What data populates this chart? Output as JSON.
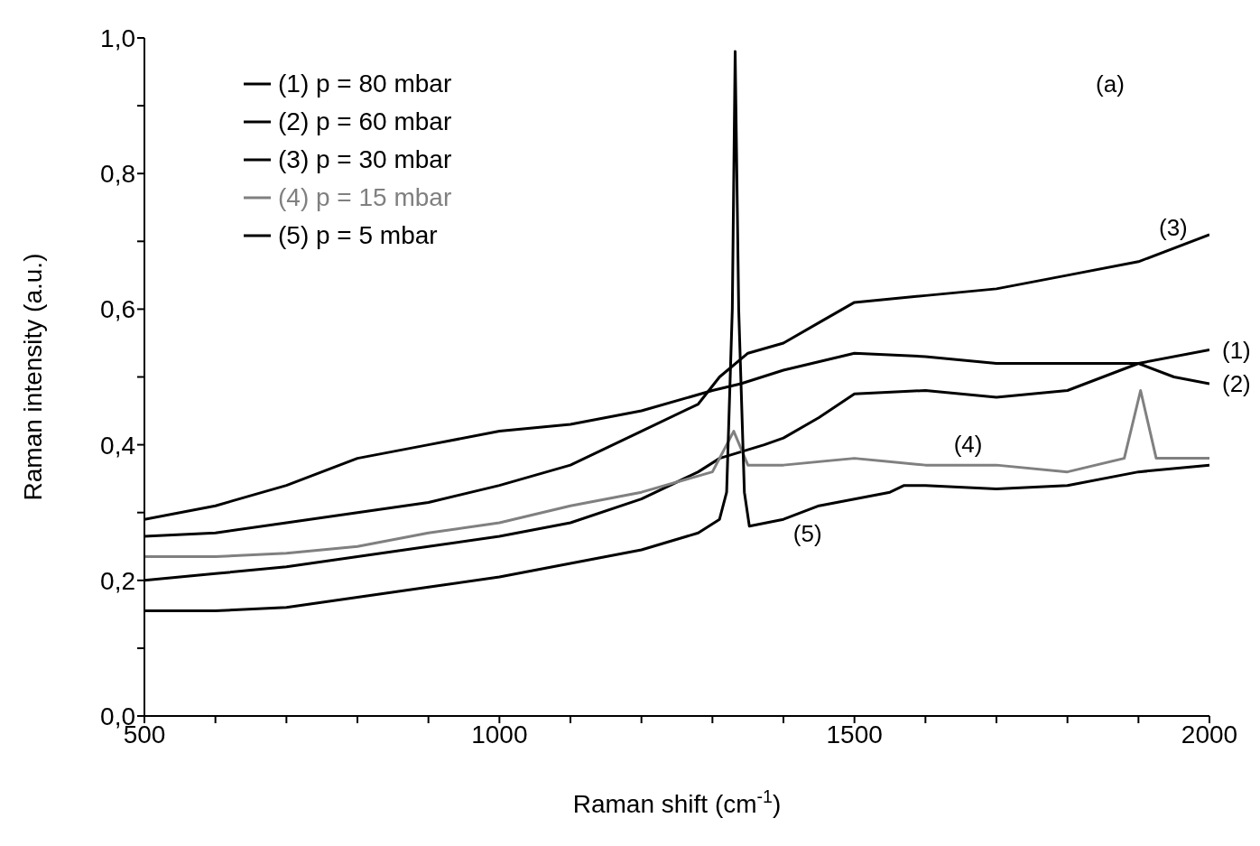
{
  "chart_data": {
    "type": "line",
    "xlabel": "Raman shift (cm$^{-1}$)",
    "ylabel": "Raman intensity (a.u.)",
    "xlim": [
      500,
      2000
    ],
    "xticks": [
      500,
      {
        "value": 600,
        "label": null
      },
      {
        "value": 700,
        "label": null
      },
      {
        "value": 800,
        "label": null
      },
      {
        "value": 900,
        "label": null
      },
      1000,
      {
        "value": 1100,
        "label": null
      },
      {
        "value": 1200,
        "label": null
      },
      {
        "value": 1300,
        "label": null
      },
      {
        "value": 1400,
        "label": null
      },
      1500,
      {
        "value": 1600,
        "label": null
      },
      {
        "value": 1700,
        "label": null
      },
      {
        "value": 1800,
        "label": null
      },
      {
        "value": 1900,
        "label": null
      },
      2000
    ],
    "ylim": [
      0,
      1
    ],
    "yticks": [
      {
        "value": 0,
        "label": "0,0"
      },
      {
        "value": 0.1,
        "label": null
      },
      {
        "value": 0.2,
        "label": "0,2"
      },
      {
        "value": 0.3,
        "label": null
      },
      {
        "value": 0.4,
        "label": "0,4"
      },
      {
        "value": 0.5,
        "label": null
      },
      {
        "value": 0.6,
        "label": "0,6"
      },
      {
        "value": 0.7,
        "label": null
      },
      {
        "value": 0.8,
        "label": "0,8"
      },
      {
        "value": 0.9,
        "label": null
      },
      {
        "value": 1,
        "label": "1,0"
      }
    ],
    "legend": "top left",
    "marker": "none",
    "line_style": "solid",
    "series": [
      {
        "name": "(1) p = 80 mbar",
        "color": "#000000",
        "x": [
          500,
          600,
          700,
          800,
          900,
          1000,
          1100,
          1200,
          1300,
          1340,
          1400,
          1500,
          1600,
          1700,
          1800,
          1900,
          2000
        ],
        "values": [
          0.29,
          0.31,
          0.34,
          0.38,
          0.4,
          0.42,
          0.43,
          0.45,
          0.48,
          0.49,
          0.51,
          0.535,
          0.53,
          0.52,
          0.52,
          0.52,
          0.54
        ]
      },
      {
        "name": "(2) p = 60 mbar",
        "color": "#000000",
        "x": [
          500,
          600,
          700,
          800,
          900,
          1000,
          1100,
          1200,
          1280,
          1310,
          1373,
          1400,
          1450,
          1500,
          1600,
          1700,
          1800,
          1850,
          1900,
          1950,
          2000
        ],
        "values": [
          0.2,
          0.21,
          0.22,
          0.235,
          0.25,
          0.265,
          0.285,
          0.32,
          0.36,
          0.38,
          0.4,
          0.41,
          0.44,
          0.475,
          0.48,
          0.47,
          0.48,
          0.5,
          0.52,
          0.5,
          0.49
        ]
      },
      {
        "name": "(3) p = 30 mbar",
        "color": "#000000",
        "x": [
          500,
          600,
          700,
          800,
          900,
          1000,
          1100,
          1200,
          1280,
          1310,
          1350,
          1400,
          1450,
          1500,
          1600,
          1700,
          1800,
          1900,
          2000
        ],
        "values": [
          0.265,
          0.27,
          0.285,
          0.3,
          0.315,
          0.34,
          0.37,
          0.42,
          0.46,
          0.5,
          0.535,
          0.55,
          0.58,
          0.61,
          0.62,
          0.63,
          0.65,
          0.67,
          0.71
        ]
      },
      {
        "name": "(4) p = 15 mbar",
        "color": "#808080",
        "x": [
          500,
          600,
          700,
          800,
          900,
          1000,
          1100,
          1200,
          1300,
          1330,
          1350,
          1400,
          1500,
          1600,
          1700,
          1800,
          1880,
          1903,
          1925,
          2000
        ],
        "values": [
          0.235,
          0.235,
          0.24,
          0.25,
          0.27,
          0.285,
          0.31,
          0.33,
          0.36,
          0.42,
          0.37,
          0.37,
          0.38,
          0.37,
          0.37,
          0.36,
          0.38,
          0.48,
          0.38,
          0.38
        ]
      },
      {
        "name": "(5) p = 5 mbar",
        "color": "#000000",
        "x": [
          500,
          600,
          700,
          800,
          900,
          1000,
          1100,
          1200,
          1280,
          1310,
          1320,
          1328,
          1332,
          1337,
          1345,
          1352,
          1400,
          1450,
          1500,
          1550,
          1570,
          1600,
          1700,
          1800,
          1900,
          2000
        ],
        "values": [
          0.155,
          0.155,
          0.16,
          0.175,
          0.19,
          0.205,
          0.225,
          0.245,
          0.27,
          0.29,
          0.33,
          0.6,
          0.98,
          0.6,
          0.33,
          0.28,
          0.29,
          0.31,
          0.32,
          0.33,
          0.34,
          0.34,
          0.335,
          0.34,
          0.36,
          0.37
        ]
      }
    ],
    "annotations": [
      "(a)",
      {
        "text": "(1)",
        "x": 2000,
        "y": 0.54
      },
      {
        "text": "(2)",
        "x": 2000,
        "y": 0.49
      },
      {
        "text": "(3)",
        "x": 1949,
        "y": 0.69
      },
      {
        "text": "(4)",
        "x": 1660,
        "y": 0.37
      },
      {
        "text": "(5)",
        "x": 1434,
        "y": 0.3
      }
    ]
  }
}
